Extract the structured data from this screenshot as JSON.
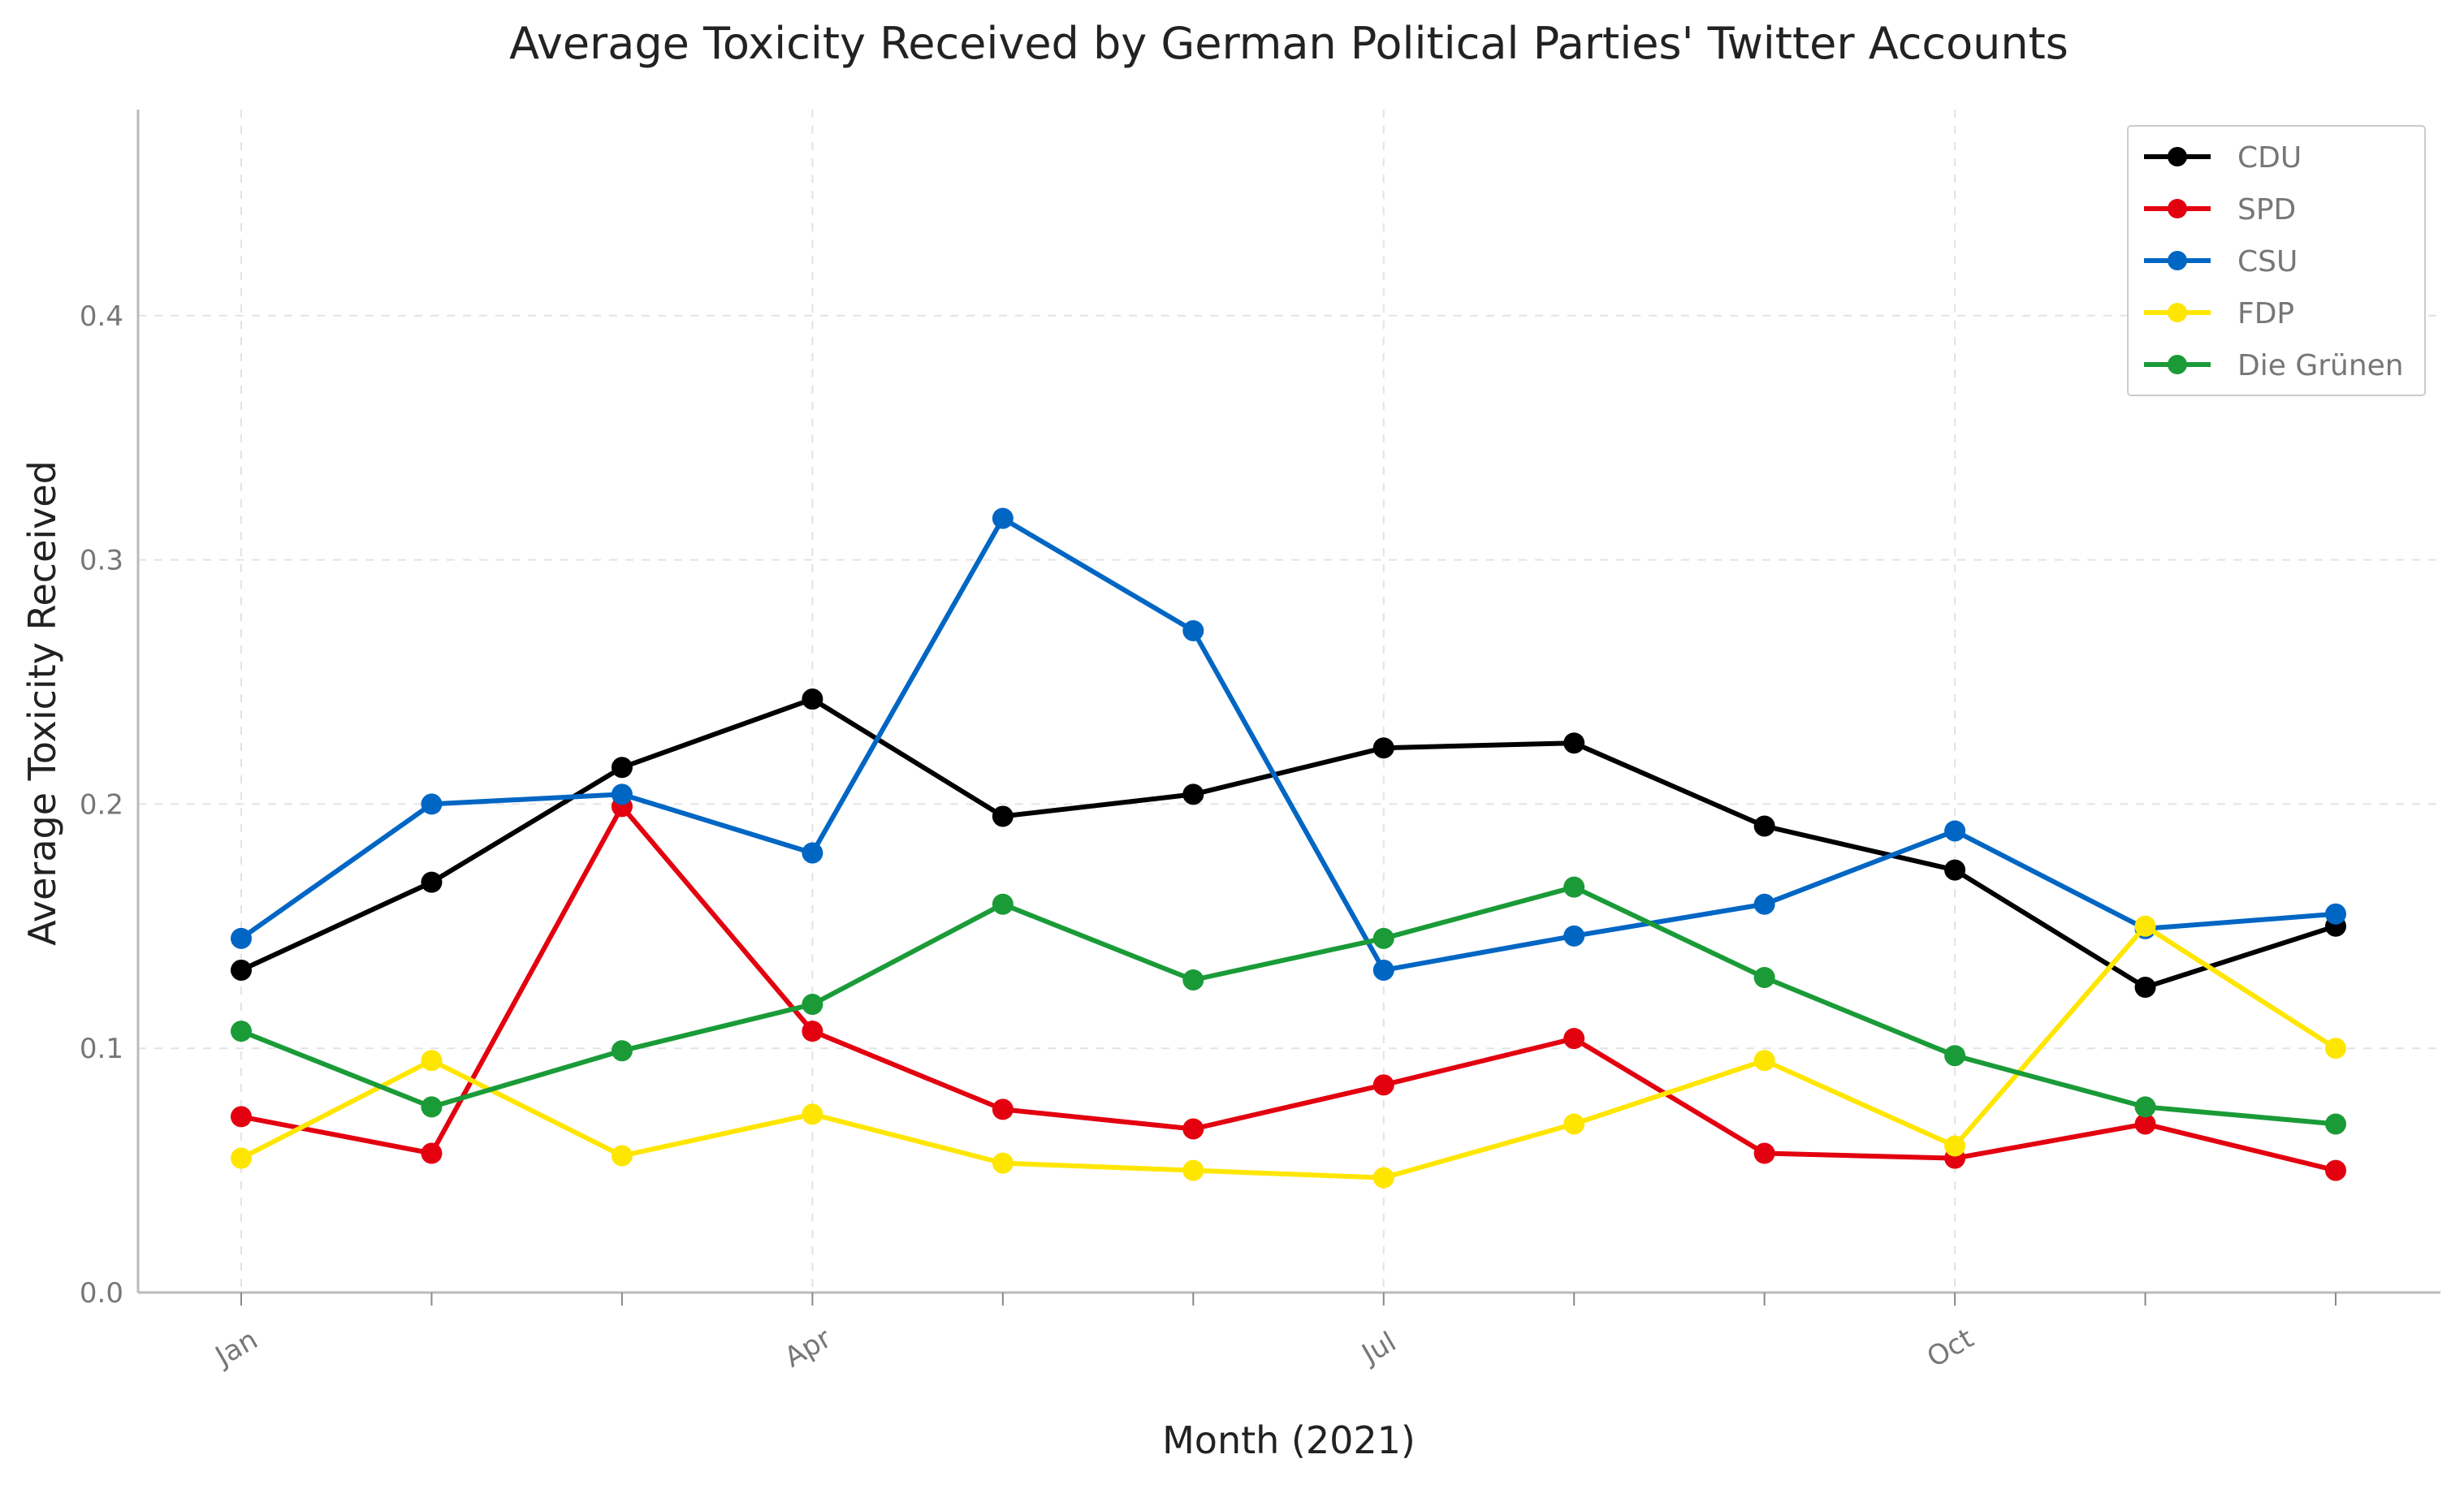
{
  "chart_data": {
    "type": "line",
    "title": "Average Toxicity Received by German Political Parties' Twitter Accounts",
    "xlabel": "Month (2021)",
    "ylabel": "Average Toxicity Received",
    "x": [
      "2021-01",
      "2021-02",
      "2021-03",
      "2021-04",
      "2021-05",
      "2021-06",
      "2021-07",
      "2021-08",
      "2021-09",
      "2021-10",
      "2021-11",
      "2021-12"
    ],
    "x_tick_labels": [
      {
        "x": "2021-01",
        "label": "Jan"
      },
      {
        "x": "2021-04",
        "label": "Apr"
      },
      {
        "x": "2021-07",
        "label": "Jul"
      },
      {
        "x": "2021-10",
        "label": "Oct"
      }
    ],
    "ylim": [
      0,
      0.48
    ],
    "y_ticks": [
      0.0,
      0.1,
      0.2,
      0.3,
      0.4
    ],
    "y_tick_labels": [
      "0.0",
      "0.1",
      "0.2",
      "0.3",
      "0.4"
    ],
    "grid": true,
    "legend_position": "top-right",
    "series": [
      {
        "name": "CDU",
        "color": "#000000",
        "values": [
          0.132,
          0.168,
          0.215,
          0.243,
          0.195,
          0.204,
          0.223,
          0.225,
          0.191,
          0.173,
          0.125,
          0.15
        ]
      },
      {
        "name": "SPD",
        "color": "#e3000f",
        "values": [
          0.072,
          0.057,
          0.199,
          0.107,
          0.075,
          0.067,
          0.085,
          0.104,
          0.057,
          0.055,
          0.069,
          0.05
        ]
      },
      {
        "name": "CSU",
        "color": "#0066c4",
        "values": [
          0.145,
          0.2,
          0.204,
          0.18,
          0.317,
          0.271,
          0.132,
          0.146,
          0.159,
          0.189,
          0.149,
          0.155
        ]
      },
      {
        "name": "FDP",
        "color": "#ffe600",
        "values": [
          0.055,
          0.095,
          0.056,
          0.073,
          0.053,
          0.05,
          0.047,
          0.069,
          0.095,
          0.06,
          0.15,
          0.1
        ]
      },
      {
        "name": "Die Grünen",
        "color": "#1a9b38",
        "values": [
          0.107,
          0.076,
          0.099,
          0.118,
          0.159,
          0.128,
          0.145,
          0.166,
          0.129,
          0.097,
          0.076,
          0.069
        ]
      }
    ]
  }
}
